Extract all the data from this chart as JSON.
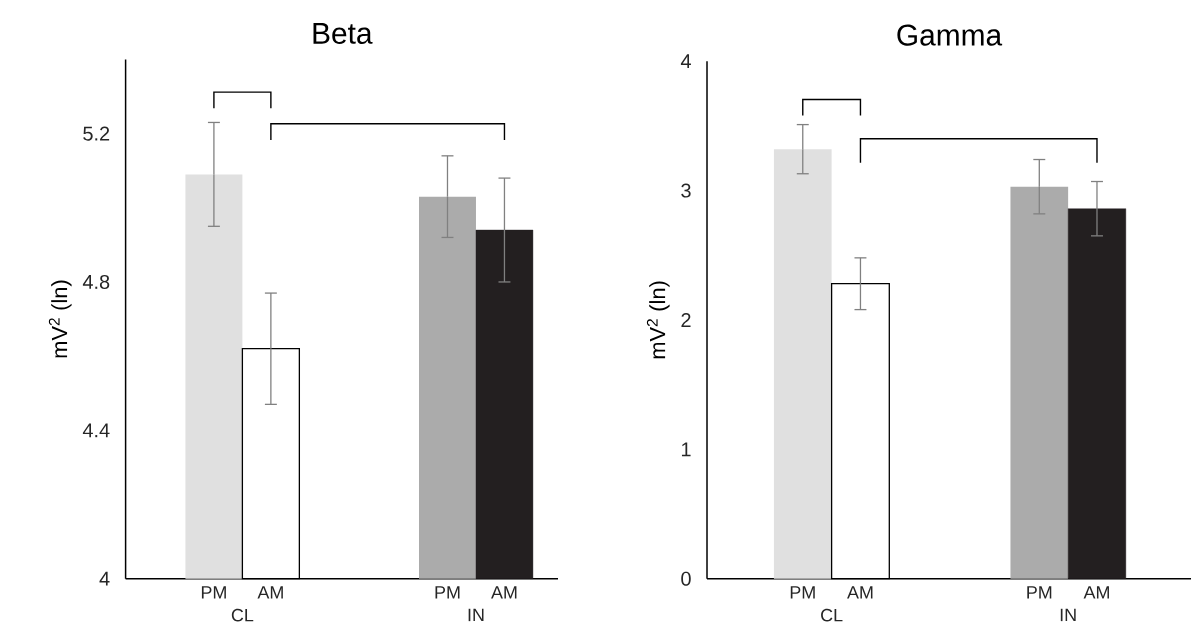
{
  "chart_data": [
    {
      "type": "bar",
      "title": "Beta",
      "ylabel": "mV$^{2}$ (ln)",
      "categories": [
        "PM",
        "AM",
        "PM",
        "AM"
      ],
      "values": [
        5.09,
        4.62,
        5.03,
        4.94
      ],
      "errors": [
        0.14,
        0.15,
        0.11,
        0.14
      ],
      "colors": [
        "#e0e0e0",
        "#ffffff",
        "#ababab",
        "#231f20"
      ],
      "ylim": [
        4,
        5.4
      ],
      "yticks": [
        4,
        4.4,
        4.8,
        5.2
      ],
      "annotations": [
        "CL",
        "IN"
      ]
    },
    {
      "type": "bar",
      "title": "Gamma",
      "ylabel": "mV$^{2}$ (ln)",
      "categories": [
        "PM",
        "AM",
        "PM",
        "AM"
      ],
      "values": [
        3.32,
        2.28,
        3.03,
        2.86
      ],
      "errors": [
        0.19,
        0.2,
        0.21,
        0.21
      ],
      "colors": [
        "#e0e0e0",
        "#ffffff",
        "#ababab",
        "#231f20"
      ],
      "ylim": [
        0,
        4
      ],
      "yticks": [
        0,
        1,
        2,
        3,
        4
      ],
      "annotations": [
        "CL",
        "IN"
      ]
    }
  ]
}
